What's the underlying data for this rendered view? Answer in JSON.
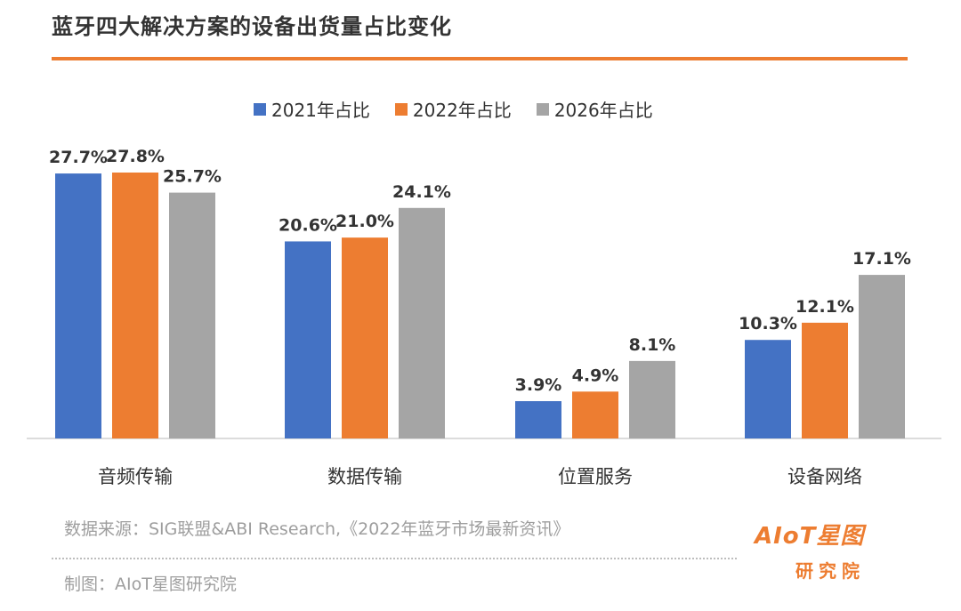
{
  "title": "蓝牙四大解决方案的设备出货量占比变化",
  "colors": {
    "accent": "#ED7D31",
    "s2021": "#4472C4",
    "s2022": "#ED7D31",
    "s2026": "#A5A5A5"
  },
  "footer": {
    "source": "数据来源：SIG联盟&ABI Research,《2022年蓝牙市场最新资讯》",
    "credit": "制图：AIoT星图研究院"
  },
  "logo": {
    "main": "AIoT星图",
    "sub": "研究院"
  },
  "chart_data": {
    "type": "bar",
    "categories": [
      "音频传输",
      "数据传输",
      "位置服务",
      "设备网络"
    ],
    "series": [
      {
        "name": "2021年占比",
        "values": [
          27.7,
          20.6,
          3.9,
          10.3
        ],
        "labels": [
          "27.7%",
          "20.6%",
          "3.9%",
          "10.3%"
        ],
        "color": "#4472C4"
      },
      {
        "name": "2022年占比",
        "values": [
          27.8,
          21.0,
          4.9,
          12.1
        ],
        "labels": [
          "27.8%",
          "21.0%",
          "4.9%",
          "12.1%"
        ],
        "color": "#ED7D31"
      },
      {
        "name": "2026年占比",
        "values": [
          25.7,
          24.1,
          8.1,
          17.1
        ],
        "labels": [
          "25.7%",
          "24.1%",
          "8.1%",
          "17.1%"
        ],
        "color": "#A5A5A5"
      }
    ],
    "ylim": [
      0,
      27.8
    ],
    "grid": false,
    "legend": "top"
  }
}
